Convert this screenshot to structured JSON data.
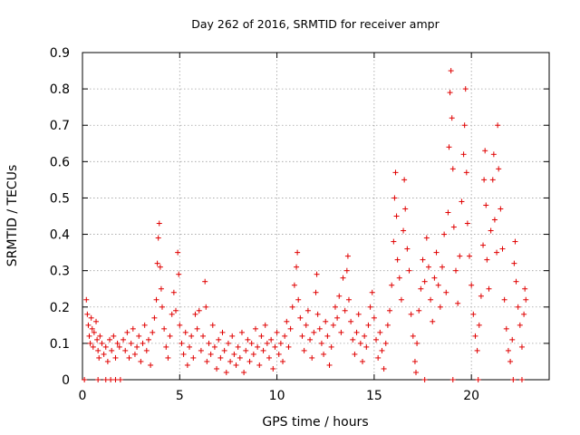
{
  "chart_data": {
    "type": "scatter",
    "title": "Day 262 of 2016, SRMTID for receiver ampr",
    "xlabel": "GPS time / hours",
    "ylabel": "SRMTID / TECUs",
    "xlim": [
      0,
      24
    ],
    "ylim": [
      0,
      0.9
    ],
    "xticks": [
      0,
      5,
      10,
      15,
      20
    ],
    "xtick_labels": [
      "0",
      "5",
      "10",
      "15",
      "20"
    ],
    "yticks": [
      0,
      0.1,
      0.2,
      0.3,
      0.4,
      0.5,
      0.6,
      0.7,
      0.8,
      0.9
    ],
    "ytick_labels": [
      "0",
      "0.1",
      "0.2",
      "0.3",
      "0.4",
      "0.5",
      "0.6",
      "0.7",
      "0.8",
      "0.9"
    ],
    "grid": true,
    "marker": "+",
    "color": "#e00000",
    "series": [
      {
        "name": "SRMTID",
        "points": [
          [
            0.1,
            0
          ],
          [
            0.2,
            0.22
          ],
          [
            0.25,
            0.18
          ],
          [
            0.3,
            0.15
          ],
          [
            0.35,
            0.12
          ],
          [
            0.4,
            0.1
          ],
          [
            0.45,
            0.17
          ],
          [
            0.5,
            0.14
          ],
          [
            0.55,
            0.09
          ],
          [
            0.6,
            0.13
          ],
          [
            0.7,
            0.16
          ],
          [
            0.75,
            0.11
          ],
          [
            0.8,
            0.08
          ],
          [
            0.85,
            0.06
          ],
          [
            0.9,
            0.12
          ],
          [
            1.0,
            0.1
          ],
          [
            1.1,
            0.07
          ],
          [
            1.2,
            0.09
          ],
          [
            1.3,
            0.05
          ],
          [
            1.4,
            0.11
          ],
          [
            1.5,
            0.08
          ],
          [
            1.6,
            0.12
          ],
          [
            1.7,
            0.06
          ],
          [
            1.8,
            0.1
          ],
          [
            1.9,
            0.09
          ],
          [
            0.8,
            0
          ],
          [
            1.2,
            0
          ],
          [
            1.45,
            0
          ],
          [
            1.7,
            0
          ],
          [
            1.95,
            0
          ],
          [
            2.1,
            0.11
          ],
          [
            2.2,
            0.08
          ],
          [
            2.3,
            0.13
          ],
          [
            2.4,
            0.06
          ],
          [
            2.5,
            0.1
          ],
          [
            2.6,
            0.14
          ],
          [
            2.7,
            0.07
          ],
          [
            2.8,
            0.09
          ],
          [
            2.9,
            0.12
          ],
          [
            3.0,
            0.05
          ],
          [
            3.1,
            0.1
          ],
          [
            3.2,
            0.15
          ],
          [
            3.3,
            0.08
          ],
          [
            3.4,
            0.11
          ],
          [
            3.5,
            0.04
          ],
          [
            3.6,
            0.13
          ],
          [
            3.7,
            0.17
          ],
          [
            3.8,
            0.22
          ],
          [
            3.85,
            0.32
          ],
          [
            3.9,
            0.39
          ],
          [
            3.95,
            0.43
          ],
          [
            4.0,
            0.31
          ],
          [
            4.05,
            0.25
          ],
          [
            4.1,
            0.2
          ],
          [
            4.2,
            0.14
          ],
          [
            4.3,
            0.09
          ],
          [
            4.4,
            0.06
          ],
          [
            4.5,
            0.12
          ],
          [
            4.6,
            0.18
          ],
          [
            4.7,
            0.24
          ],
          [
            4.8,
            0.19
          ],
          [
            4.9,
            0.35
          ],
          [
            4.95,
            0.29
          ],
          [
            5.0,
            0.15
          ],
          [
            5.1,
            0.1
          ],
          [
            5.2,
            0.07
          ],
          [
            5.3,
            0.13
          ],
          [
            5.4,
            0.04
          ],
          [
            5.5,
            0.09
          ],
          [
            5.6,
            0.12
          ],
          [
            5.7,
            0.06
          ],
          [
            5.8,
            0.18
          ],
          [
            5.9,
            0.14
          ],
          [
            6.0,
            0.19
          ],
          [
            6.1,
            0.08
          ],
          [
            6.2,
            0.12
          ],
          [
            6.3,
            0.27
          ],
          [
            6.35,
            0.2
          ],
          [
            6.4,
            0.05
          ],
          [
            6.5,
            0.1
          ],
          [
            6.6,
            0.07
          ],
          [
            6.7,
            0.15
          ],
          [
            6.8,
            0.09
          ],
          [
            6.9,
            0.03
          ],
          [
            7.0,
            0.11
          ],
          [
            7.1,
            0.06
          ],
          [
            7.2,
            0.13
          ],
          [
            7.3,
            0.08
          ],
          [
            7.4,
            0.02
          ],
          [
            7.5,
            0.1
          ],
          [
            7.6,
            0.05
          ],
          [
            7.7,
            0.12
          ],
          [
            7.8,
            0.07
          ],
          [
            7.9,
            0.04
          ],
          [
            8.0,
            0.09
          ],
          [
            8.1,
            0.06
          ],
          [
            8.2,
            0.13
          ],
          [
            8.3,
            0.02
          ],
          [
            8.4,
            0.08
          ],
          [
            8.5,
            0.11
          ],
          [
            8.6,
            0.05
          ],
          [
            8.7,
            0.1
          ],
          [
            8.8,
            0.07
          ],
          [
            8.9,
            0.14
          ],
          [
            9.0,
            0.09
          ],
          [
            9.1,
            0.04
          ],
          [
            9.2,
            0.12
          ],
          [
            9.3,
            0.08
          ],
          [
            9.4,
            0.15
          ],
          [
            9.5,
            0.1
          ],
          [
            9.6,
            0.06
          ],
          [
            9.7,
            0.11
          ],
          [
            9.8,
            0.03
          ],
          [
            9.9,
            0.09
          ],
          [
            10.0,
            0.13
          ],
          [
            10.1,
            0.07
          ],
          [
            10.2,
            0.1
          ],
          [
            10.3,
            0.05
          ],
          [
            10.4,
            0.12
          ],
          [
            10.5,
            0.16
          ],
          [
            10.6,
            0.09
          ],
          [
            10.7,
            0.14
          ],
          [
            10.8,
            0.2
          ],
          [
            10.9,
            0.26
          ],
          [
            11.0,
            0.31
          ],
          [
            11.05,
            0.35
          ],
          [
            11.1,
            0.22
          ],
          [
            11.2,
            0.17
          ],
          [
            11.3,
            0.12
          ],
          [
            11.4,
            0.08
          ],
          [
            11.5,
            0.15
          ],
          [
            11.6,
            0.19
          ],
          [
            11.7,
            0.11
          ],
          [
            11.8,
            0.06
          ],
          [
            11.9,
            0.13
          ],
          [
            12.0,
            0.24
          ],
          [
            12.05,
            0.29
          ],
          [
            12.1,
            0.18
          ],
          [
            12.2,
            0.14
          ],
          [
            12.3,
            0.1
          ],
          [
            12.4,
            0.07
          ],
          [
            12.5,
            0.16
          ],
          [
            12.6,
            0.12
          ],
          [
            12.7,
            0.04
          ],
          [
            12.8,
            0.09
          ],
          [
            12.9,
            0.15
          ],
          [
            13.0,
            0.2
          ],
          [
            13.1,
            0.17
          ],
          [
            13.2,
            0.23
          ],
          [
            13.3,
            0.13
          ],
          [
            13.4,
            0.28
          ],
          [
            13.5,
            0.19
          ],
          [
            13.6,
            0.3
          ],
          [
            13.65,
            0.34
          ],
          [
            13.7,
            0.22
          ],
          [
            13.8,
            0.16
          ],
          [
            13.9,
            0.11
          ],
          [
            14.0,
            0.07
          ],
          [
            14.1,
            0.13
          ],
          [
            14.2,
            0.18
          ],
          [
            14.3,
            0.1
          ],
          [
            14.4,
            0.05
          ],
          [
            14.5,
            0.12
          ],
          [
            14.6,
            0.09
          ],
          [
            14.7,
            0.15
          ],
          [
            14.8,
            0.2
          ],
          [
            14.9,
            0.24
          ],
          [
            15.0,
            0.17
          ],
          [
            15.1,
            0.11
          ],
          [
            15.2,
            0.06
          ],
          [
            15.3,
            0.13
          ],
          [
            15.4,
            0.08
          ],
          [
            15.5,
            0.03
          ],
          [
            15.6,
            0.1
          ],
          [
            15.7,
            0.15
          ],
          [
            15.8,
            0.19
          ],
          [
            15.9,
            0.26
          ],
          [
            16.0,
            0.38
          ],
          [
            16.05,
            0.5
          ],
          [
            16.1,
            0.57
          ],
          [
            16.15,
            0.45
          ],
          [
            16.2,
            0.33
          ],
          [
            16.3,
            0.28
          ],
          [
            16.4,
            0.22
          ],
          [
            16.5,
            0.41
          ],
          [
            16.55,
            0.55
          ],
          [
            16.6,
            0.47
          ],
          [
            16.7,
            0.36
          ],
          [
            16.8,
            0.3
          ],
          [
            16.9,
            0.18
          ],
          [
            17.0,
            0.12
          ],
          [
            17.1,
            0.05
          ],
          [
            17.15,
            0.02
          ],
          [
            17.2,
            0.1
          ],
          [
            17.3,
            0.19
          ],
          [
            17.4,
            0.25
          ],
          [
            17.5,
            0.33
          ],
          [
            17.6,
            0.27
          ],
          [
            17.7,
            0.39
          ],
          [
            17.8,
            0.31
          ],
          [
            17.9,
            0.22
          ],
          [
            18.0,
            0.16
          ],
          [
            18.1,
            0.28
          ],
          [
            18.2,
            0.35
          ],
          [
            18.3,
            0.26
          ],
          [
            18.4,
            0.2
          ],
          [
            18.5,
            0.31
          ],
          [
            18.6,
            0.4
          ],
          [
            18.7,
            0.24
          ],
          [
            18.8,
            0.46
          ],
          [
            18.85,
            0.64
          ],
          [
            18.9,
            0.79
          ],
          [
            18.95,
            0.85
          ],
          [
            19.0,
            0.72
          ],
          [
            19.05,
            0.58
          ],
          [
            19.1,
            0.42
          ],
          [
            19.2,
            0.3
          ],
          [
            19.3,
            0.21
          ],
          [
            19.4,
            0.34
          ],
          [
            19.5,
            0.49
          ],
          [
            19.6,
            0.62
          ],
          [
            19.65,
            0.7
          ],
          [
            19.7,
            0.8
          ],
          [
            19.75,
            0.57
          ],
          [
            19.8,
            0.43
          ],
          [
            19.9,
            0.34
          ],
          [
            20.0,
            0.26
          ],
          [
            20.1,
            0.18
          ],
          [
            20.2,
            0.12
          ],
          [
            20.3,
            0.08
          ],
          [
            20.4,
            0.15
          ],
          [
            20.5,
            0.23
          ],
          [
            20.6,
            0.37
          ],
          [
            20.65,
            0.55
          ],
          [
            20.7,
            0.63
          ],
          [
            20.75,
            0.48
          ],
          [
            20.8,
            0.33
          ],
          [
            20.9,
            0.25
          ],
          [
            21.0,
            0.41
          ],
          [
            21.1,
            0.55
          ],
          [
            21.15,
            0.62
          ],
          [
            21.2,
            0.44
          ],
          [
            21.3,
            0.35
          ],
          [
            21.35,
            0.7
          ],
          [
            21.4,
            0.58
          ],
          [
            21.5,
            0.47
          ],
          [
            21.6,
            0.36
          ],
          [
            21.7,
            0.22
          ],
          [
            21.8,
            0.14
          ],
          [
            21.9,
            0.08
          ],
          [
            22.0,
            0.05
          ],
          [
            22.1,
            0.11
          ],
          [
            22.2,
            0.32
          ],
          [
            22.25,
            0.38
          ],
          [
            22.3,
            0.27
          ],
          [
            22.4,
            0.2
          ],
          [
            22.5,
            0.15
          ],
          [
            22.6,
            0.09
          ],
          [
            22.7,
            0.18
          ],
          [
            22.75,
            0.25
          ],
          [
            22.8,
            0.22
          ],
          [
            17.6,
            0
          ],
          [
            19.05,
            0
          ],
          [
            20.35,
            0
          ],
          [
            22.15,
            0
          ],
          [
            22.6,
            0
          ]
        ]
      }
    ]
  }
}
